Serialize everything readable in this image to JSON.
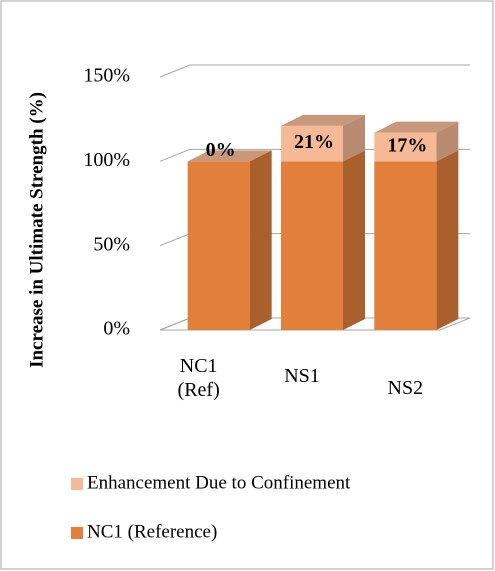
{
  "chart_data": {
    "type": "bar3d_stacked",
    "y_axis_label": "Increase in Ultimate Strength (%)",
    "categories": [
      "NC1\n(Ref)",
      "NS1",
      "NS2"
    ],
    "series": [
      {
        "name": "NC1 (Reference)",
        "color": "#e2803b",
        "values": [
          100,
          100,
          100
        ]
      },
      {
        "name": "Enhancement Due to Confinement",
        "color": "#f5b995",
        "values": [
          0,
          21,
          17
        ],
        "value_labels": [
          "0%",
          "21%",
          "17%"
        ]
      }
    ],
    "ylim": [
      0,
      150
    ],
    "yticks": [
      {
        "value": 0,
        "label": "0%"
      },
      {
        "value": 50,
        "label": "50%"
      },
      {
        "value": 100,
        "label": "100%"
      },
      {
        "value": 150,
        "label": "150%"
      }
    ],
    "grid": true,
    "legend": "bottom"
  }
}
